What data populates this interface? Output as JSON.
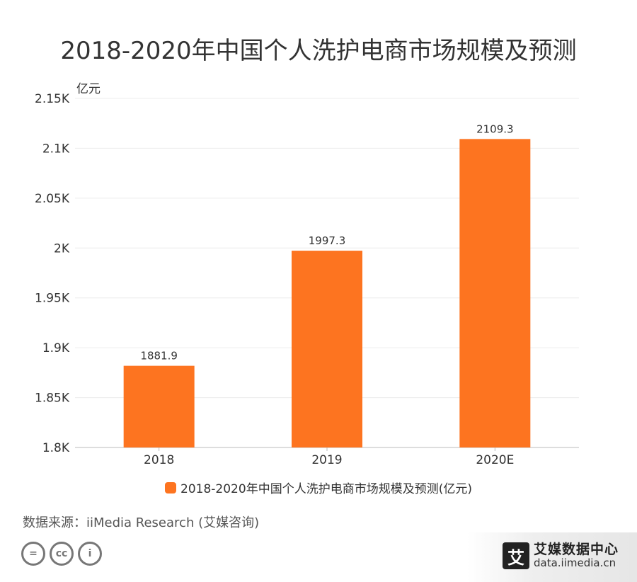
{
  "title": "2018-2020年中国个人洗护电商市场规模及预测",
  "chart_data": {
    "type": "bar",
    "categories": [
      "2018",
      "2019",
      "2020E"
    ],
    "series": [
      {
        "name": "2018-2020年中国个人洗护电商市场规模及预测(亿元)",
        "values": [
          1881.9,
          1997.3,
          2109.3
        ]
      }
    ],
    "data_labels": [
      "1881.9",
      "1997.3",
      "2109.3"
    ],
    "ylabel": "亿元",
    "ylim": [
      1800,
      2150
    ],
    "yticks": [
      1800,
      1850,
      1900,
      1950,
      2000,
      2050,
      2100,
      2150
    ],
    "ytick_labels": [
      "1.8K",
      "1.85K",
      "1.9K",
      "1.95K",
      "2K",
      "2.05K",
      "2.1K",
      "2.15K"
    ],
    "grid": true,
    "legend_position": "bottom",
    "bar_color": "#fd7420"
  },
  "legend": {
    "label": "2018-2020年中国个人洗护电商市场规模及预测(亿元)"
  },
  "source": {
    "label": "数据来源：",
    "value": "iiMedia Research (艾媒咨询)"
  },
  "cc_icons": [
    {
      "icon": "equal-icon",
      "glyph": "="
    },
    {
      "icon": "cc-icon",
      "glyph": "cc"
    },
    {
      "icon": "person-icon",
      "glyph": "i"
    }
  ],
  "brand": {
    "logo_char": "艾",
    "name": "艾媒数据中心",
    "url": "data.iimedia.cn"
  }
}
